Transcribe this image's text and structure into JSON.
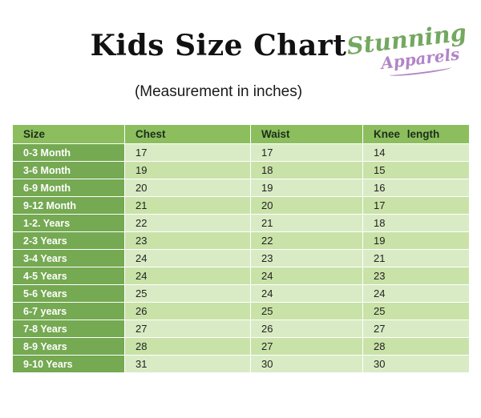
{
  "brand": {
    "line1": "Stunning",
    "line2": "Apparels"
  },
  "colors": {
    "brand_green": "#74a860",
    "brand_purple": "#b184c7",
    "header_bg": "#8cbe5e",
    "size_column_bg": "#75a952",
    "row_light": "#d9ebc4",
    "row_dark": "#c9e2a8"
  },
  "chart_data": {
    "type": "table",
    "title": "Kids Size Chart",
    "subtitle": "(Measurement in inches)",
    "columns": [
      "Size",
      "Chest",
      "Waist",
      "Knee length"
    ],
    "rows": [
      [
        "0-3 Month",
        17,
        17,
        14
      ],
      [
        "3-6 Month",
        19,
        18,
        15
      ],
      [
        "6-9 Month",
        20,
        19,
        16
      ],
      [
        "9-12 Month",
        21,
        20,
        17
      ],
      [
        "1-2. Years",
        22,
        21,
        18
      ],
      [
        "2-3 Years",
        23,
        22,
        19
      ],
      [
        "3-4 Years",
        24,
        23,
        21
      ],
      [
        "4-5 Years",
        24,
        24,
        23
      ],
      [
        "5-6 Years",
        25,
        24,
        24
      ],
      [
        "6-7 years",
        26,
        25,
        25
      ],
      [
        "7-8 Years",
        27,
        26,
        27
      ],
      [
        "8-9 Years",
        28,
        27,
        28
      ],
      [
        "9-10 Years",
        31,
        30,
        30
      ]
    ]
  }
}
